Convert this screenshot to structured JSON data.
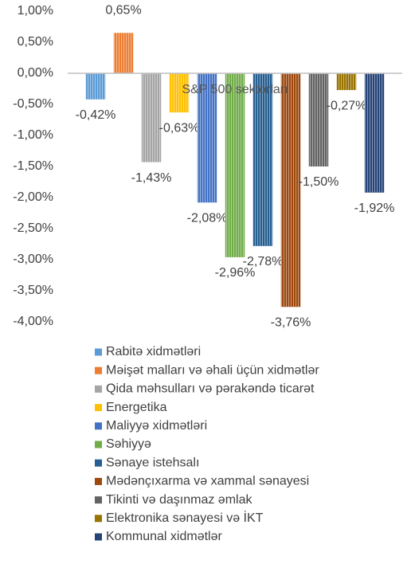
{
  "chart_data": {
    "type": "bar",
    "categories": [
      "S&P 500 sektorları"
    ],
    "series": [
      {
        "name": "Rabitə xidmətləri",
        "color": "#5b9bd5",
        "values": [
          -0.42
        ],
        "value_labels": [
          "-0,42%"
        ]
      },
      {
        "name": "Məişət malları və əhali üçün xidmətlər",
        "color": "#ed7d31",
        "values": [
          0.65
        ],
        "value_labels": [
          "0,65%"
        ]
      },
      {
        "name": "Qida məhsulları və pərakəndə ticarət",
        "color": "#a5a5a5",
        "values": [
          -1.43
        ],
        "value_labels": [
          "-1,43%"
        ]
      },
      {
        "name": "Energetika",
        "color": "#ffc000",
        "values": [
          -0.63
        ],
        "value_labels": [
          "-0,63%"
        ]
      },
      {
        "name": "Maliyyə xidmətləri",
        "color": "#4472c4",
        "values": [
          -2.08
        ],
        "value_labels": [
          "-2,08%"
        ]
      },
      {
        "name": "Səhiyyə",
        "color": "#70ad47",
        "values": [
          -2.96
        ],
        "value_labels": [
          "-2,96%"
        ]
      },
      {
        "name": "Sənaye istehsalı",
        "color": "#255e91",
        "values": [
          -2.78
        ],
        "value_labels": [
          "-2,78%"
        ]
      },
      {
        "name": "Mədənçıxarma və xammal sənayesi",
        "color": "#9e480e",
        "values": [
          -3.76
        ],
        "value_labels": [
          "-3,76%"
        ]
      },
      {
        "name": "Tikinti və daşınmaz əmlak",
        "color": "#636363",
        "values": [
          -1.5
        ],
        "value_labels": [
          "-1,50%"
        ]
      },
      {
        "name": "Elektronika sənayesi və İKT",
        "color": "#997300",
        "values": [
          -0.27
        ],
        "value_labels": [
          "-0,27%"
        ]
      },
      {
        "name": "Kommunal xidmətlər",
        "color": "#264478",
        "values": [
          -1.92
        ],
        "value_labels": [
          "-1,92%"
        ]
      }
    ],
    "ylim": [
      -4,
      1
    ],
    "yticks": [
      {
        "value": 1,
        "label": "1,00%"
      },
      {
        "value": 0.5,
        "label": "0,50%"
      },
      {
        "value": 0,
        "label": "0,00%"
      },
      {
        "value": -0.5,
        "label": "-0,50%"
      },
      {
        "value": -1,
        "label": "-1,00%"
      },
      {
        "value": -1.5,
        "label": "-1,50%"
      },
      {
        "value": -2,
        "label": "-2,00%"
      },
      {
        "value": -2.5,
        "label": "-2,50%"
      },
      {
        "value": -3,
        "label": "-3,00%"
      },
      {
        "value": -3.5,
        "label": "-3,50%"
      },
      {
        "value": -4,
        "label": "-4,00%"
      }
    ],
    "grid": false
  }
}
